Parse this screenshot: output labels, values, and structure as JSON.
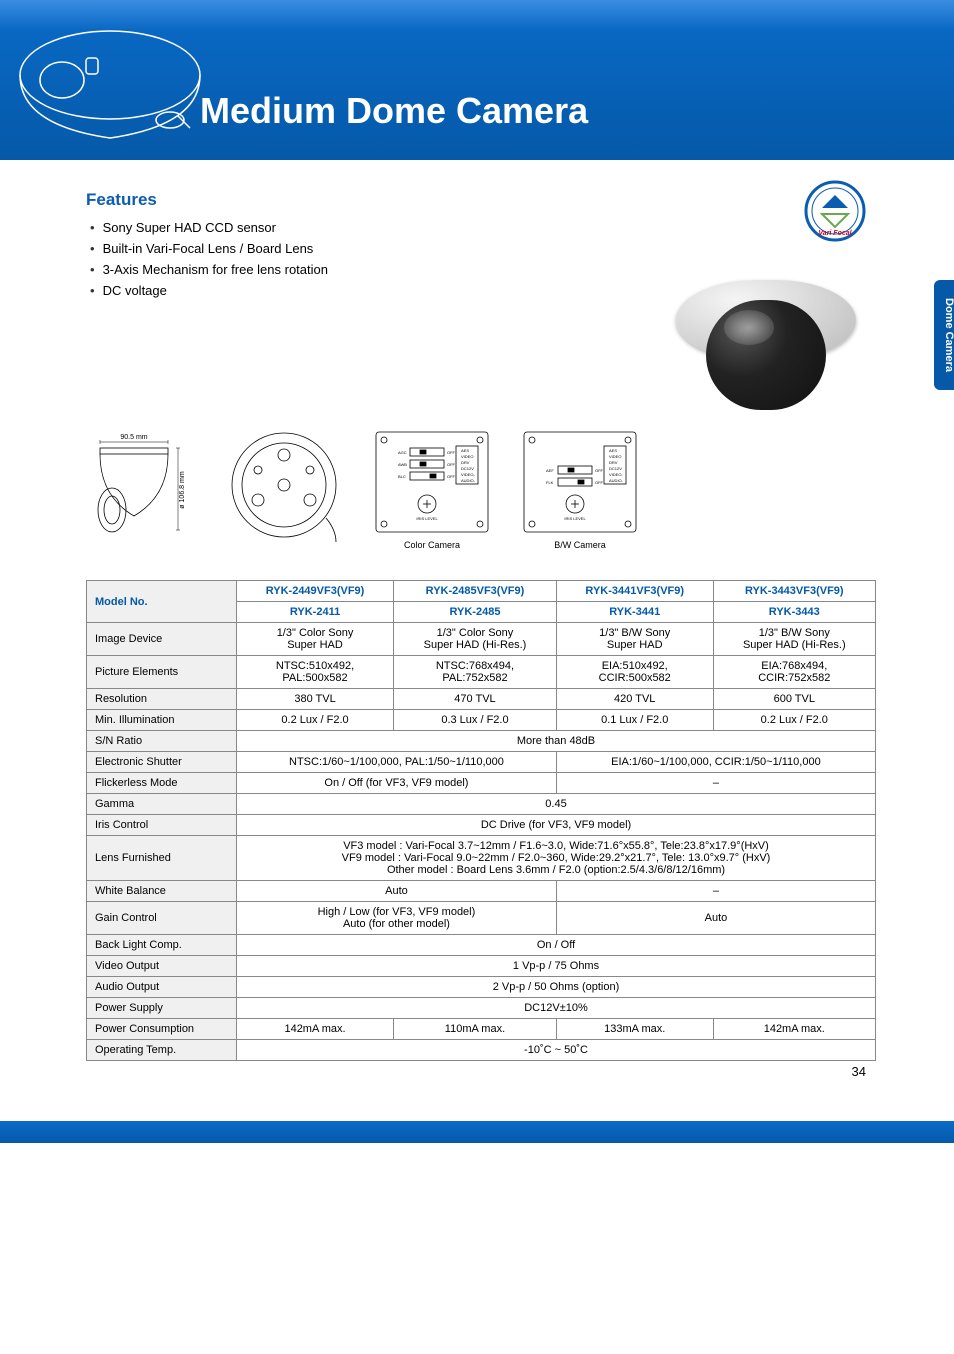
{
  "page": {
    "title": "Medium Dome Camera",
    "side_tab": "Dome Camera",
    "page_number": "34",
    "features_heading": "Features",
    "features": [
      "Sony Super HAD CCD sensor",
      "Built-in Vari-Focal Lens / Board Lens",
      "3-Axis Mechanism for free lens rotation",
      "DC voltage"
    ]
  },
  "badge": {
    "label": "Vari Focal",
    "ring_color": "#0b5db0",
    "inner_color": "#ffffff"
  },
  "diagrams": {
    "side_dim_top": "90.5 mm",
    "side_dim_left": "ø 106.8 mm",
    "color_label": "Color Camera",
    "bw_label": "B/W Camera"
  },
  "spec": {
    "columns_top": [
      "RYK-2449VF3(VF9)",
      "RYK-2485VF3(VF9)",
      "RYK-3441VF3(VF9)",
      "RYK-3443VF3(VF9)"
    ],
    "columns_sub": [
      "RYK-2411",
      "RYK-2485",
      "RYK-3441",
      "RYK-3443"
    ],
    "rows": [
      {
        "label": "Image Device",
        "cells": [
          "1/3\" Color Sony\nSuper HAD",
          "1/3\" Color Sony\nSuper HAD (Hi-Res.)",
          "1/3\" B/W Sony\nSuper HAD",
          "1/3\" B/W Sony\nSuper HAD (Hi-Res.)"
        ]
      },
      {
        "label": "Picture Elements",
        "cells": [
          "NTSC:510x492,\nPAL:500x582",
          "NTSC:768x494,\nPAL:752x582",
          "EIA:510x492,\nCCIR:500x582",
          "EIA:768x494,\nCCIR:752x582"
        ]
      },
      {
        "label": "Resolution",
        "cells": [
          "380 TVL",
          "470 TVL",
          "420 TVL",
          "600 TVL"
        ]
      },
      {
        "label": "Min. Illumination",
        "cells": [
          "0.2 Lux / F2.0",
          "0.3 Lux / F2.0",
          "0.1 Lux / F2.0",
          "0.2 Lux / F2.0"
        ]
      },
      {
        "label": "S/N Ratio",
        "span4": "More than 48dB"
      },
      {
        "label": "Electronic Shutter",
        "span2a": "NTSC:1/60~1/100,000, PAL:1/50~1/110,000",
        "span2b": "EIA:1/60~1/100,000, CCIR:1/50~1/110,000"
      },
      {
        "label": "Flickerless Mode",
        "span2a": "On / Off (for VF3, VF9 model)",
        "span2b": "–"
      },
      {
        "label": "Gamma",
        "span4": "0.45"
      },
      {
        "label": "Iris Control",
        "span4": "DC Drive (for VF3, VF9 model)"
      },
      {
        "label": "Lens Furnished",
        "span4": "VF3 model   : Vari-Focal 3.7~12mm / F1.6~3.0, Wide:71.6°x55.8°, Tele:23.8°x17.9°(HxV)\nVF9 model   : Vari-Focal 9.0~22mm / F2.0~360, Wide:29.2°x21.7°, Tele: 13.0°x9.7° (HxV)\nOther model : Board Lens 3.6mm / F2.0 (option:2.5/4.3/6/8/12/16mm)"
      },
      {
        "label": "White Balance",
        "span2a": "Auto",
        "span2b": "–"
      },
      {
        "label": "Gain Control",
        "span2a": "High / Low (for VF3, VF9 model)\nAuto (for other model)",
        "span2b": "Auto"
      },
      {
        "label": "Back Light Comp.",
        "span4": "On / Off"
      },
      {
        "label": "Video Output",
        "span4": "1 Vp-p / 75 Ohms"
      },
      {
        "label": "Audio Output",
        "span4": "2 Vp-p / 50 Ohms (option)"
      },
      {
        "label": "Power Supply",
        "span4": "DC12V±10%"
      },
      {
        "label": "Power Consumption",
        "cells": [
          "142mA max.",
          "110mA max.",
          "133mA max.",
          "142mA max."
        ]
      },
      {
        "label": "Operating Temp.",
        "span4": "-10˚C ~ 50˚C"
      }
    ],
    "model_no_label": "Model No."
  },
  "colors": {
    "brand_blue": "#0559a8",
    "band_top": "#0a6bc9",
    "grid": "#888888",
    "row_bg": "#f0f0f0"
  }
}
